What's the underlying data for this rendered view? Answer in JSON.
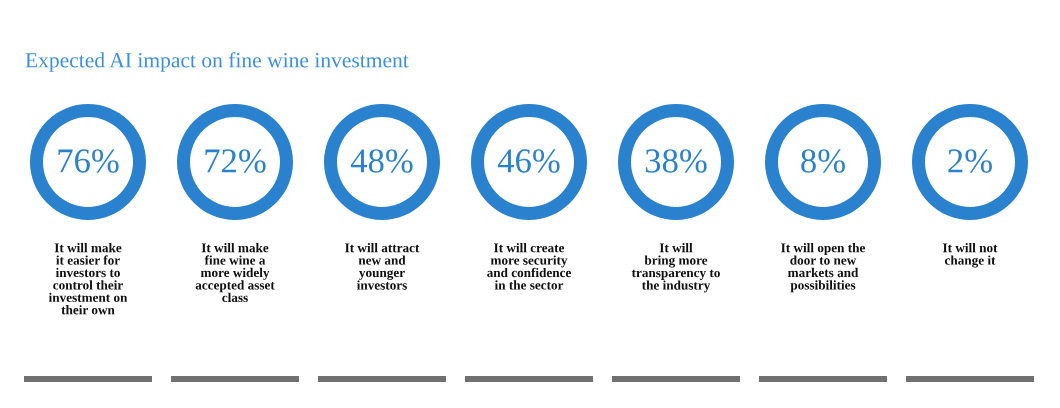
{
  "chart_data": {
    "type": "other",
    "title": "Expected AI impact on fine wine investment",
    "categories": [
      "It will make\nit easier for\ninvestors to\ncontrol their\ninvestment on\ntheir own",
      "It will make\nfine wine a\nmore widely\naccepted asset\nclass",
      "It will attract\nnew and\nyounger\ninvestors",
      "It will create\nmore security\nand confidence\nin the sector",
      "It will\nbring more\ntransparency to\nthe industry",
      "It will open the\ndoor to new\nmarkets and\npossibilities",
      "It will not\nchange it"
    ],
    "values": [
      76,
      72,
      48,
      46,
      38,
      8,
      2
    ],
    "value_labels": [
      "76%",
      "72%",
      "48%",
      "46%",
      "38%",
      "8%",
      "2%"
    ],
    "colors": [
      "#2a82cf",
      "#2a82cf",
      "#2a82cf",
      "#2a82cf",
      "#2a82cf",
      "#2a82cf",
      "#2a82cf"
    ]
  }
}
